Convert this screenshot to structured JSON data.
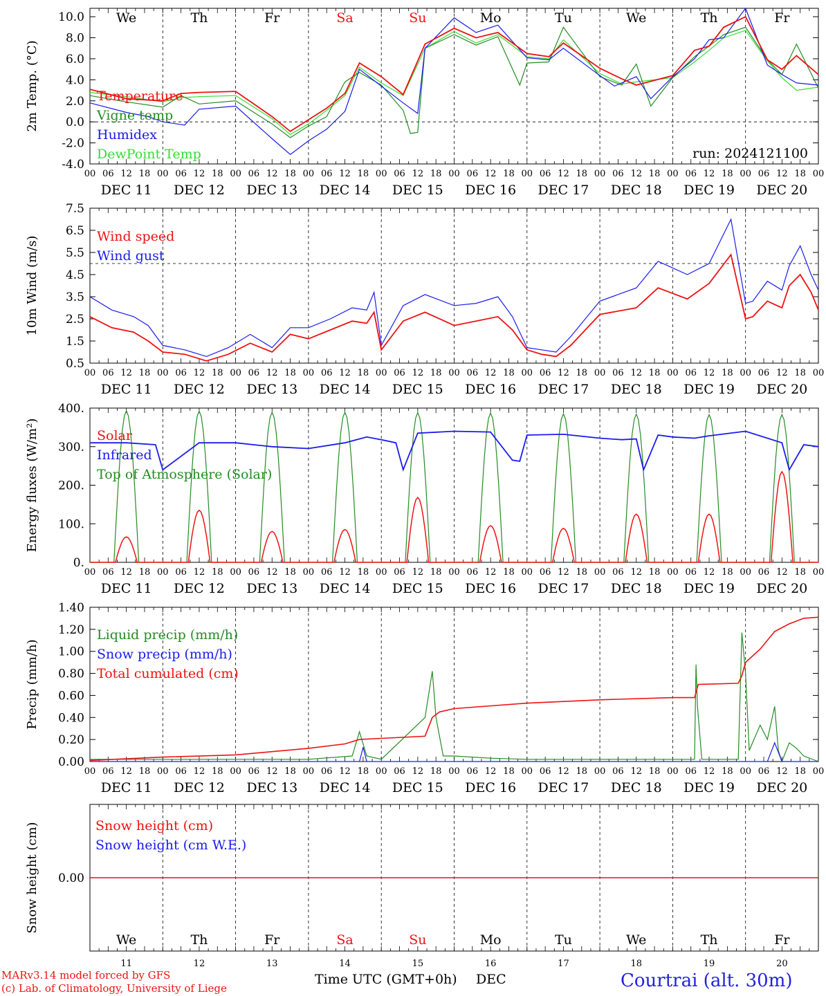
{
  "footer": {
    "credit_line1": "MARv3.14 model forced by GFS",
    "credit_line2": "(c) Lab. of Climatology, University of Liege",
    "xlabel": "Time UTC (GMT+0h)",
    "month": "DEC",
    "station": "Courtrai (alt. 30m)"
  },
  "colors": {
    "red": "#ee1111",
    "green": "#228b22",
    "blue": "#1a1aee",
    "lightgreen": "#33dd33",
    "weekend": "#ee1111",
    "axis": "#000000"
  },
  "axes": {
    "hour_ticks": [
      "00",
      "06",
      "12",
      "18"
    ],
    "day_labels": [
      "DEC 11",
      "DEC 12",
      "DEC 13",
      "DEC 14",
      "DEC 15",
      "DEC 16",
      "DEC 17",
      "DEC 18",
      "DEC 19",
      "DEC 20"
    ],
    "weekdays": [
      "We",
      "Th",
      "Fr",
      "Sa",
      "Su",
      "Mo",
      "Tu",
      "We",
      "Th",
      "Fr"
    ],
    "weekend_flags": [
      false,
      false,
      false,
      true,
      true,
      false,
      false,
      false,
      false,
      false
    ],
    "day_numbers": [
      "11",
      "12",
      "13",
      "14",
      "15",
      "16",
      "17",
      "18",
      "19",
      "20"
    ],
    "x_days": 10
  },
  "chart_data": [
    {
      "type": "line",
      "ylabel": "2m Temp. (°C)",
      "ylim": [
        -4,
        10.8
      ],
      "yticks": [
        "-4.0",
        "-2.0",
        "0.0",
        "2.0",
        "4.0",
        "6.0",
        "8.0",
        "10.0"
      ],
      "ytick_values": [
        -4,
        -2,
        0,
        2,
        4,
        6,
        8,
        10
      ],
      "annotation": "run: 2024121100",
      "zero_line": 0,
      "series": [
        {
          "name": "Temperature",
          "color": "red",
          "x": [
            0,
            0.5,
            1,
            1.25,
            1.5,
            2,
            2.5,
            2.75,
            3,
            3.25,
            3.5,
            3.7,
            4,
            4.3,
            4.6,
            5,
            5.3,
            5.6,
            6,
            6.3,
            6.5,
            7,
            7.3,
            7.5,
            8,
            8.3,
            8.5,
            8.7,
            9,
            9.3,
            9.5,
            9.7,
            10
          ],
          "y": [
            3.1,
            2.2,
            2.0,
            2.7,
            2.8,
            2.9,
            0.5,
            -0.9,
            0.2,
            1.3,
            2.7,
            5.6,
            4.3,
            2.6,
            7.4,
            8.9,
            8.0,
            8.5,
            6.5,
            6.2,
            7.5,
            5.1,
            4.1,
            3.5,
            4.4,
            6.8,
            7.2,
            9.0,
            10.0,
            5.9,
            5.0,
            6.3,
            4.5
          ]
        },
        {
          "name": "Vigne temp",
          "color": "green",
          "x": [
            0,
            0.5,
            1,
            1.25,
            1.5,
            2,
            2.5,
            2.75,
            3,
            3.25,
            3.5,
            3.7,
            4,
            4.3,
            4.4,
            4.5,
            4.6,
            5,
            5.3,
            5.6,
            5.9,
            6,
            6.3,
            6.5,
            7,
            7.3,
            7.5,
            7.7,
            8,
            8.3,
            8.5,
            8.7,
            9,
            9.3,
            9.5,
            9.7,
            10
          ],
          "y": [
            2.5,
            1.9,
            1.4,
            2.5,
            1.7,
            2.0,
            -0.2,
            -1.5,
            -0.4,
            0.5,
            3.8,
            4.7,
            3.5,
            1.1,
            -1.1,
            -1.0,
            7.0,
            8.3,
            7.3,
            8.1,
            3.5,
            5.6,
            5.7,
            9.0,
            4.3,
            3.5,
            5.5,
            1.5,
            4.2,
            6.2,
            7.2,
            8.3,
            9.0,
            5.9,
            4.5,
            7.4,
            3.2
          ]
        },
        {
          "name": "Humidex",
          "color": "blue",
          "x": [
            0,
            0.5,
            0.8,
            1,
            1.3,
            1.5,
            2,
            2.5,
            2.75,
            3,
            3.25,
            3.5,
            3.7,
            4,
            4.3,
            4.5,
            4.6,
            5,
            5.3,
            5.6,
            6,
            6.3,
            6.5,
            7,
            7.2,
            7.5,
            7.7,
            8,
            8.3,
            8.5,
            8.7,
            9,
            9.3,
            9.5,
            9.7,
            10
          ],
          "y": [
            1.8,
            0.9,
            0.5,
            0.0,
            -0.3,
            1.2,
            1.5,
            -1.6,
            -3.1,
            -1.8,
            -0.7,
            1.0,
            5.0,
            3.4,
            1.8,
            0.8,
            7.0,
            9.9,
            8.5,
            9.2,
            6.1,
            5.9,
            7.0,
            4.4,
            3.4,
            4.3,
            2.2,
            4.3,
            6.0,
            7.8,
            8.0,
            10.8,
            5.4,
            4.5,
            3.7,
            3.5
          ]
        },
        {
          "name": "DewPoint Temp",
          "color": "lightgreen",
          "x": [
            0,
            0.5,
            1,
            1.25,
            1.5,
            2,
            2.5,
            2.75,
            3,
            3.25,
            3.5,
            3.7,
            4,
            4.3,
            4.6,
            5,
            5.3,
            5.6,
            6,
            6.3,
            6.5,
            7,
            7.3,
            7.5,
            8,
            8.3,
            8.5,
            8.7,
            9,
            9.3,
            9.5,
            9.7,
            10
          ],
          "y": [
            2.8,
            2.4,
            1.9,
            2.3,
            2.4,
            2.5,
            0.3,
            -1.2,
            -0.2,
            1.1,
            2.5,
            5.2,
            3.7,
            2.5,
            7.0,
            8.6,
            7.5,
            8.3,
            6.2,
            6.0,
            7.8,
            4.6,
            3.6,
            3.8,
            4.2,
            5.7,
            6.8,
            8.0,
            8.7,
            5.8,
            4.2,
            3.0,
            3.3
          ]
        }
      ]
    },
    {
      "type": "line",
      "ylabel": "10m Wind (m/s)",
      "ylim": [
        0.5,
        7.5
      ],
      "yticks": [
        "0.5",
        "1.5",
        "2.5",
        "3.5",
        "4.5",
        "5.5",
        "6.5",
        "7.5"
      ],
      "ytick_values": [
        0.5,
        1.5,
        2.5,
        3.5,
        4.5,
        5.5,
        6.5,
        7.5
      ],
      "ref_line": 5,
      "series": [
        {
          "name": "Wind speed",
          "color": "red",
          "x": [
            0,
            0.3,
            0.6,
            0.8,
            1,
            1.3,
            1.6,
            1.9,
            2.2,
            2.5,
            2.75,
            3,
            3.3,
            3.6,
            3.8,
            3.9,
            4,
            4.3,
            4.6,
            5,
            5.3,
            5.6,
            5.8,
            6,
            6.2,
            6.4,
            6.6,
            7,
            7.5,
            7.8,
            8.2,
            8.5,
            8.8,
            9,
            9.1,
            9.3,
            9.5,
            9.6,
            9.75,
            9.9,
            10
          ],
          "y": [
            2.6,
            2.1,
            1.9,
            1.5,
            1.0,
            0.9,
            0.6,
            0.9,
            1.4,
            1.0,
            1.8,
            1.6,
            2.0,
            2.4,
            2.3,
            2.8,
            1.1,
            2.4,
            2.8,
            2.2,
            2.4,
            2.6,
            2.0,
            1.1,
            0.9,
            0.8,
            1.3,
            2.7,
            3.0,
            3.9,
            3.4,
            4.1,
            5.4,
            2.5,
            2.6,
            3.3,
            3.0,
            4.0,
            4.5,
            3.7,
            2.9
          ]
        },
        {
          "name": "Wind gust",
          "color": "blue",
          "x": [
            0,
            0.3,
            0.6,
            0.8,
            1,
            1.3,
            1.6,
            1.9,
            2.2,
            2.5,
            2.75,
            3,
            3.3,
            3.6,
            3.8,
            3.9,
            4,
            4.3,
            4.6,
            5,
            5.3,
            5.6,
            5.8,
            6,
            6.2,
            6.4,
            6.6,
            7,
            7.5,
            7.8,
            8.2,
            8.5,
            8.8,
            9,
            9.1,
            9.3,
            9.5,
            9.6,
            9.75,
            9.9,
            10
          ],
          "y": [
            3.5,
            2.9,
            2.6,
            2.2,
            1.3,
            1.1,
            0.8,
            1.2,
            1.8,
            1.2,
            2.1,
            2.1,
            2.5,
            3.0,
            2.9,
            3.7,
            1.3,
            3.1,
            3.6,
            3.1,
            3.2,
            3.5,
            2.6,
            1.2,
            1.1,
            1.0,
            1.7,
            3.3,
            3.9,
            5.1,
            4.5,
            5.0,
            7.0,
            3.2,
            3.3,
            4.2,
            3.8,
            4.9,
            5.8,
            4.5,
            3.8
          ]
        }
      ]
    },
    {
      "type": "line",
      "ylabel": "Energy fluxes (W/m²)",
      "ylim": [
        0,
        400
      ],
      "yticks": [
        "0.",
        "100.",
        "200.",
        "300.",
        "400."
      ],
      "ytick_values": [
        0,
        100,
        200,
        300,
        400
      ],
      "series": [
        {
          "name": "Solar",
          "color": "red",
          "diurnal_peaks": [
            66,
            135,
            80,
            85,
            168,
            95,
            88,
            125,
            125,
            235
          ]
        },
        {
          "name": "Infrared",
          "color": "blue",
          "x": [
            0,
            0.5,
            0.9,
            1,
            1.5,
            2,
            2.5,
            3,
            3.5,
            3.8,
            4,
            4.2,
            4.3,
            4.5,
            5,
            5.5,
            5.8,
            5.9,
            6,
            6.5,
            7,
            7.3,
            7.5,
            7.6,
            7.8,
            8,
            8.3,
            8.5,
            9,
            9.5,
            9.6,
            9.8,
            10
          ],
          "y": [
            310,
            310,
            305,
            240,
            310,
            310,
            300,
            295,
            310,
            325,
            318,
            310,
            240,
            335,
            340,
            338,
            265,
            262,
            330,
            332,
            322,
            318,
            320,
            240,
            330,
            325,
            322,
            328,
            340,
            310,
            240,
            305,
            300
          ]
        },
        {
          "name": "Top of Atmosphere (Solar)",
          "color": "green",
          "diurnal_peaks": [
            393,
            392,
            389,
            389,
            388,
            387,
            385,
            384,
            383,
            383
          ]
        }
      ]
    },
    {
      "type": "line",
      "ylabel": "Precip (mm/h)",
      "ylim": [
        0,
        1.4
      ],
      "yticks": [
        "0.00",
        "0.20",
        "0.40",
        "0.60",
        "0.80",
        "1.00",
        "1.20",
        "1.40"
      ],
      "ytick_values": [
        0,
        0.2,
        0.4,
        0.6,
        0.8,
        1.0,
        1.2,
        1.4
      ],
      "series": [
        {
          "name": "Liquid precip (mm/h)",
          "color": "green",
          "x": [
            0,
            1,
            2,
            3,
            3.6,
            3.7,
            3.8,
            4,
            4.6,
            4.7,
            4.75,
            4.85,
            5,
            5.5,
            6,
            7,
            8,
            8.3,
            8.32,
            8.34,
            8.4,
            8.9,
            8.95,
            9,
            9.05,
            9.2,
            9.3,
            9.4,
            9.45,
            9.5,
            9.6,
            9.7,
            9.8,
            10
          ],
          "y": [
            0.02,
            0.02,
            0.02,
            0.02,
            0.05,
            0.27,
            0.05,
            0.02,
            0.4,
            0.82,
            0.4,
            0.05,
            0.05,
            0.03,
            0.02,
            0.02,
            0.02,
            0.02,
            0.88,
            0.5,
            0.02,
            0.02,
            1.17,
            0.8,
            0.1,
            0.33,
            0.2,
            0.5,
            0.1,
            0.0,
            0.17,
            0.12,
            0.05,
            0.0
          ]
        },
        {
          "name": "Snow precip (mm/h)",
          "color": "blue",
          "x": [
            0,
            3.7,
            3.75,
            3.8,
            9.3,
            9.4,
            9.5,
            10
          ],
          "y": [
            0.0,
            0.0,
            0.13,
            0.0,
            0.0,
            0.17,
            0.0,
            0.0
          ]
        },
        {
          "name": "Total cumulated (cm)",
          "color": "red",
          "x": [
            0,
            1,
            2,
            2.5,
            3,
            3.5,
            3.7,
            4,
            4.6,
            4.7,
            4.8,
            5,
            6,
            7,
            8,
            8.3,
            8.35,
            8.9,
            8.95,
            9,
            9.2,
            9.4,
            9.6,
            9.8,
            10
          ],
          "y": [
            0.01,
            0.04,
            0.06,
            0.09,
            0.12,
            0.16,
            0.2,
            0.21,
            0.23,
            0.4,
            0.45,
            0.48,
            0.53,
            0.56,
            0.58,
            0.58,
            0.7,
            0.71,
            0.78,
            0.9,
            1.02,
            1.18,
            1.25,
            1.3,
            1.31
          ]
        }
      ]
    },
    {
      "type": "line",
      "ylabel": "Snow height (cm)",
      "ylim": [
        -1,
        1
      ],
      "yticks": [
        "0.00"
      ],
      "ytick_values": [
        0
      ],
      "series": [
        {
          "name": "Snow height (cm)",
          "color": "red",
          "x": [
            0,
            10
          ],
          "y": [
            0,
            0
          ]
        },
        {
          "name": "Snow height (cm W.E.)",
          "color": "blue",
          "x": [],
          "y": []
        }
      ]
    }
  ],
  "panel_layout_note": ""
}
